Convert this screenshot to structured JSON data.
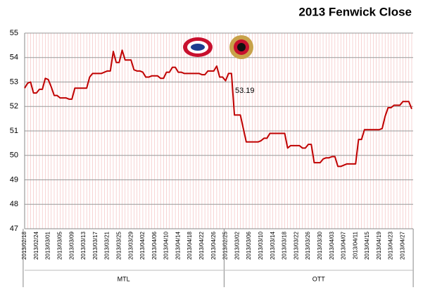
{
  "chart_data": {
    "type": "line",
    "title": "2013 Fenwick Close",
    "annotation": "53.19",
    "ylim": [
      47,
      55
    ],
    "yticks": [
      47,
      48,
      49,
      50,
      51,
      52,
      53,
      54,
      55
    ],
    "grid": true,
    "categories": [
      "2013/02/18",
      null,
      null,
      null,
      "2013/02/24",
      null,
      null,
      null,
      "2013/03/01",
      null,
      null,
      null,
      "2013/03/05",
      null,
      null,
      null,
      "2013/03/09",
      null,
      null,
      null,
      "2013/03/13",
      null,
      null,
      null,
      "2013/03/17",
      null,
      null,
      null,
      "2013/03/21",
      null,
      null,
      null,
      "2013/03/25",
      null,
      null,
      null,
      "2013/03/29",
      null,
      null,
      null,
      "2013/04/02",
      null,
      null,
      null,
      "2013/04/06",
      null,
      null,
      null,
      "2013/04/10",
      null,
      null,
      null,
      "2013/04/14",
      null,
      null,
      null,
      "2013/04/18",
      null,
      null,
      null,
      "2013/04/22",
      null,
      null,
      null,
      "2013/04/26",
      null,
      null,
      null,
      "2013/02/25",
      null,
      null,
      null,
      "2013/03/02",
      null,
      null,
      null,
      "2013/03/06",
      null,
      null,
      null,
      "2013/03/10",
      null,
      null,
      null,
      "2013/03/14",
      null,
      null,
      null,
      "2013/03/18",
      null,
      null,
      null,
      "2013/03/22",
      null,
      null,
      null,
      "2013/03/26",
      null,
      null,
      null,
      "2013/03/30",
      null,
      null,
      null,
      "2013/04/03",
      null,
      null,
      null,
      "2013/04/07",
      null,
      null,
      null,
      "2013/04/11",
      null,
      null,
      null,
      "2013/04/15",
      null,
      null,
      null,
      "2013/04/19",
      null,
      null,
      null,
      "2013/04/23",
      null,
      null,
      null,
      "2013/04/27",
      null,
      null,
      null
    ],
    "groups": [
      {
        "label": "MTL",
        "count": 68
      },
      {
        "label": "OTT",
        "count": 64
      }
    ],
    "series": [
      {
        "name": "Fenwick Close",
        "color": "#c00000",
        "values": [
          52.75,
          52.95,
          53.0,
          52.55,
          52.55,
          52.7,
          52.7,
          53.15,
          53.1,
          52.8,
          52.45,
          52.45,
          52.35,
          52.35,
          52.35,
          52.3,
          52.3,
          52.75,
          52.75,
          52.75,
          52.75,
          52.75,
          53.2,
          53.35,
          53.35,
          53.35,
          53.35,
          53.4,
          53.45,
          53.45,
          54.25,
          53.8,
          53.8,
          54.3,
          53.9,
          53.9,
          53.9,
          53.5,
          53.45,
          53.45,
          53.4,
          53.2,
          53.2,
          53.25,
          53.25,
          53.25,
          53.15,
          53.15,
          53.4,
          53.4,
          53.6,
          53.6,
          53.4,
          53.4,
          53.35,
          53.35,
          53.35,
          53.35,
          53.35,
          53.35,
          53.3,
          53.3,
          53.45,
          53.45,
          53.45,
          53.65,
          53.2,
          53.2,
          53.05,
          53.35,
          53.35,
          51.65,
          51.65,
          51.65,
          51.1,
          50.55,
          50.55,
          50.55,
          50.55,
          50.55,
          50.6,
          50.7,
          50.7,
          50.9,
          50.9,
          50.9,
          50.9,
          50.9,
          50.9,
          50.3,
          50.4,
          50.4,
          50.4,
          50.4,
          50.3,
          50.3,
          50.45,
          50.45,
          49.7,
          49.7,
          49.7,
          49.85,
          49.9,
          49.9,
          49.95,
          49.95,
          49.55,
          49.55,
          49.6,
          49.65,
          49.65,
          49.65,
          49.65,
          50.65,
          50.65,
          51.05,
          51.05,
          51.05,
          51.05,
          51.05,
          51.05,
          51.1,
          51.6,
          51.95,
          51.95,
          52.05,
          52.05,
          52.05,
          52.2,
          52.2,
          52.2,
          51.9
        ]
      }
    ]
  }
}
